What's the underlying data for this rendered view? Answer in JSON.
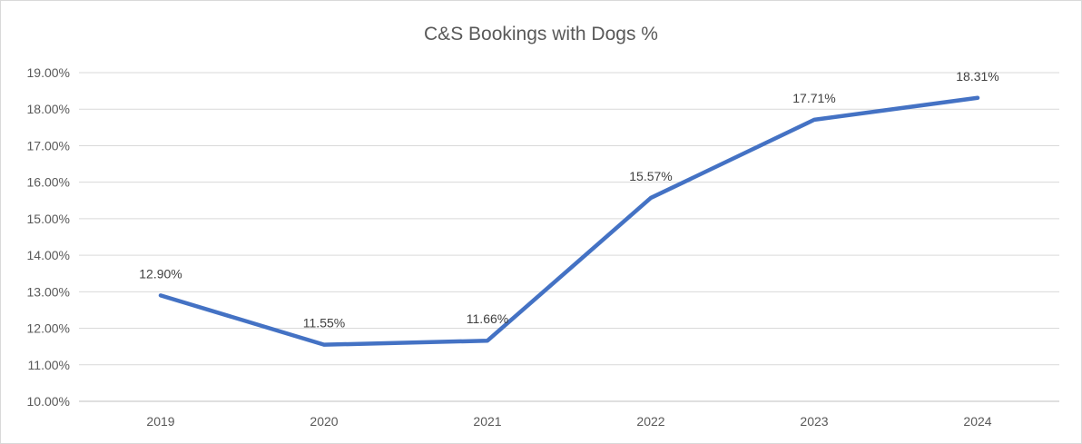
{
  "chart": {
    "title": "C&S Bookings with Dogs %"
  },
  "chart_data": {
    "type": "line",
    "title": "C&S Bookings with Dogs %",
    "categories": [
      "2019",
      "2020",
      "2021",
      "2022",
      "2023",
      "2024"
    ],
    "series": [
      {
        "name": "C&S Bookings with Dogs %",
        "values": [
          12.9,
          11.55,
          11.66,
          15.57,
          17.71,
          18.31
        ]
      }
    ],
    "data_labels": [
      "12.90%",
      "11.55%",
      "11.66%",
      "15.57%",
      "17.71%",
      "18.31%"
    ],
    "y_ticks": [
      "19.00%",
      "18.00%",
      "17.00%",
      "16.00%",
      "15.00%",
      "14.00%",
      "13.00%",
      "12.00%",
      "11.00%",
      "10.00%"
    ],
    "ylim": [
      10,
      19
    ],
    "y_step": 1,
    "xlabel": "",
    "ylabel": "",
    "grid": true,
    "legend_position": "none",
    "markers": false,
    "colors": {
      "line": "#4472C4",
      "gridline": "#D9D9D9",
      "axis_line": "#BFBFBF",
      "tick_text": "#595959",
      "title_text": "#595959",
      "data_label_text": "#404040",
      "background": "#FFFFFF",
      "border": "#D9D9D9"
    }
  }
}
